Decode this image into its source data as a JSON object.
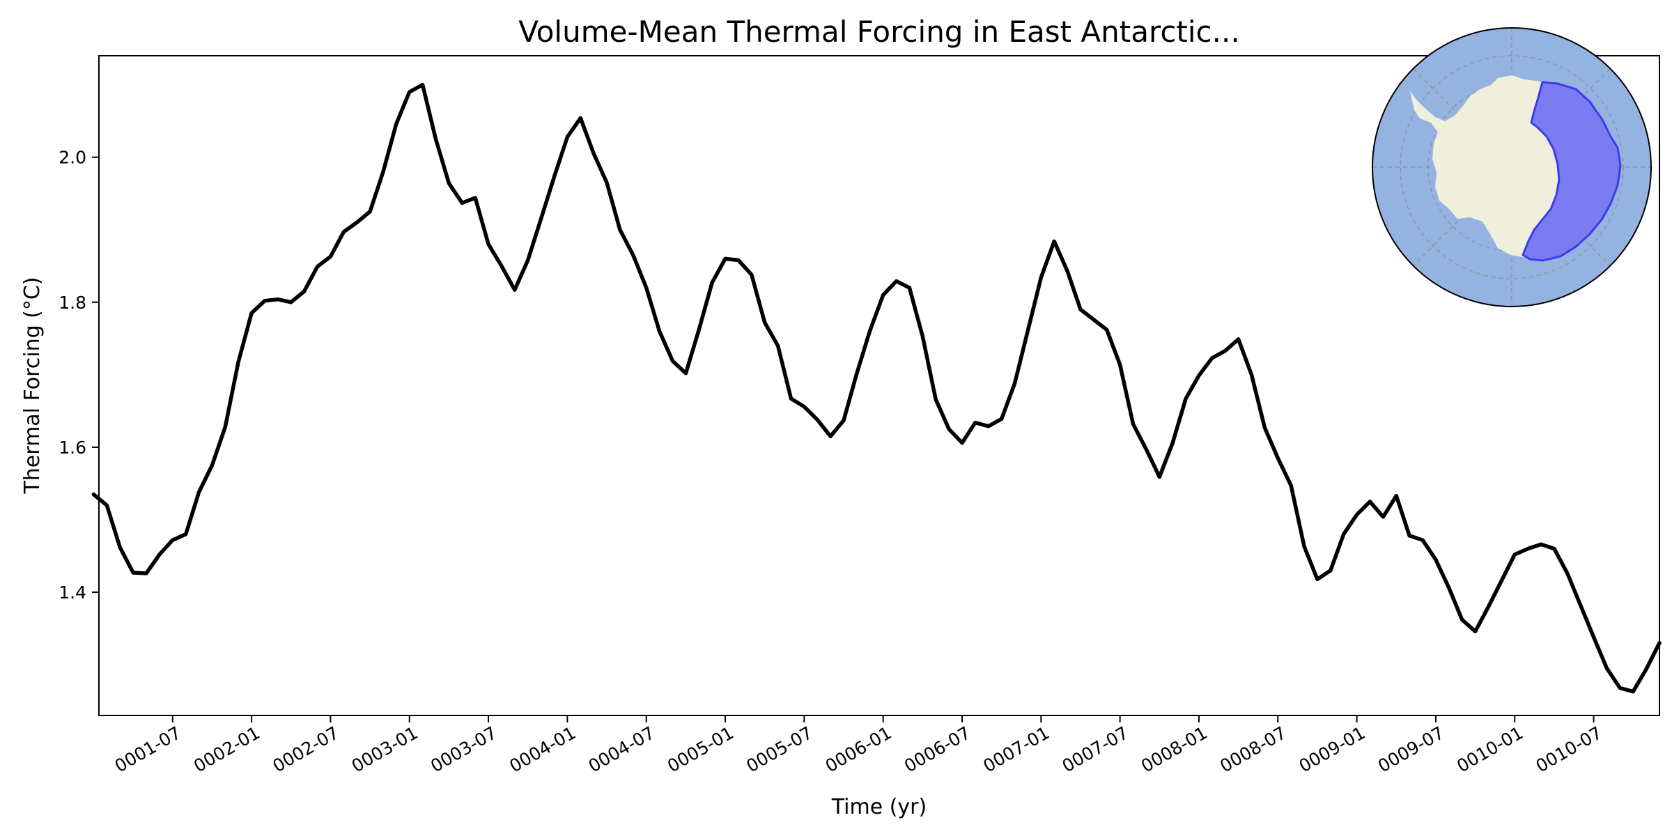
{
  "chart_data": {
    "type": "line",
    "title": "Volume-Mean Thermal Forcing in East Antarctic...",
    "xlabel": "Time (yr)",
    "ylabel": "Thermal Forcing (°C)",
    "xlim": [
      "0001-01-13",
      "0010-12-01"
    ],
    "ylim": [
      1.23,
      2.14
    ],
    "grid": false,
    "x_ticks": [
      "0001-07",
      "0002-01",
      "0002-07",
      "0003-01",
      "0003-07",
      "0004-01",
      "0004-07",
      "0005-01",
      "0005-07",
      "0006-01",
      "0006-07",
      "0007-01",
      "0007-07",
      "0008-01",
      "0008-07",
      "0009-01",
      "0009-07",
      "0010-01",
      "0010-07"
    ],
    "y_ticks": [
      "1.4",
      "1.6",
      "1.8",
      "2.0"
    ],
    "y_tick_values": [
      1.4,
      1.6,
      1.8,
      2.0
    ],
    "series": [
      {
        "color": "#000000",
        "x": [
          "0001-01",
          "0001-02",
          "0001-03",
          "0001-04",
          "0001-05",
          "0001-06",
          "0001-07",
          "0001-08",
          "0001-09",
          "0001-10",
          "0001-11",
          "0001-12",
          "0002-01",
          "0002-02",
          "0002-03",
          "0002-04",
          "0002-05",
          "0002-06",
          "0002-07",
          "0002-08",
          "0002-09",
          "0002-10",
          "0002-11",
          "0002-12",
          "0003-01",
          "0003-02",
          "0003-03",
          "0003-04",
          "0003-05",
          "0003-06",
          "0003-07",
          "0003-08",
          "0003-09",
          "0003-10",
          "0003-11",
          "0003-12",
          "0004-01",
          "0004-02",
          "0004-03",
          "0004-04",
          "0004-05",
          "0004-06",
          "0004-07",
          "0004-08",
          "0004-09",
          "0004-10",
          "0004-11",
          "0004-12",
          "0005-01",
          "0005-02",
          "0005-03",
          "0005-04",
          "0005-05",
          "0005-06",
          "0005-07",
          "0005-08",
          "0005-09",
          "0005-10",
          "0005-11",
          "0005-12",
          "0006-01",
          "0006-02",
          "0006-03",
          "0006-04",
          "0006-05",
          "0006-06",
          "0006-07",
          "0006-08",
          "0006-09",
          "0006-10",
          "0006-11",
          "0006-12",
          "0007-01",
          "0007-02",
          "0007-03",
          "0007-04",
          "0007-05",
          "0007-06",
          "0007-07",
          "0007-08",
          "0007-09",
          "0007-10",
          "0007-11",
          "0007-12",
          "0008-01",
          "0008-02",
          "0008-03",
          "0008-04",
          "0008-05",
          "0008-06",
          "0008-07",
          "0008-08",
          "0008-09",
          "0008-10",
          "0008-11",
          "0008-12",
          "0009-01",
          "0009-02",
          "0009-03",
          "0009-04",
          "0009-05",
          "0009-06",
          "0009-07",
          "0009-08",
          "0009-09",
          "0009-10",
          "0009-11",
          "0009-12",
          "0010-01",
          "0010-02",
          "0010-03",
          "0010-04",
          "0010-05",
          "0010-06",
          "0010-07",
          "0010-08",
          "0010-09",
          "0010-10",
          "0010-11",
          "0010-12"
        ],
        "values": [
          1.535,
          1.52,
          1.462,
          1.427,
          1.426,
          1.452,
          1.472,
          1.48,
          1.538,
          1.575,
          1.628,
          1.718,
          1.785,
          1.802,
          1.804,
          1.8,
          1.815,
          1.849,
          1.863,
          1.897,
          1.91,
          1.925,
          1.98,
          2.046,
          2.09,
          2.1,
          2.025,
          1.964,
          1.937,
          1.944,
          1.88,
          1.85,
          1.817,
          1.858,
          1.915,
          1.973,
          2.028,
          2.054,
          2.005,
          1.965,
          1.9,
          1.865,
          1.82,
          1.76,
          1.719,
          1.702,
          1.762,
          1.827,
          1.86,
          1.858,
          1.838,
          1.772,
          1.74,
          1.667,
          1.656,
          1.638,
          1.615,
          1.637,
          1.702,
          1.761,
          1.81,
          1.829,
          1.82,
          1.753,
          1.666,
          1.625,
          1.606,
          1.634,
          1.629,
          1.639,
          1.688,
          1.761,
          1.834,
          1.884,
          1.843,
          1.79,
          1.776,
          1.762,
          1.714,
          1.632,
          1.597,
          1.559,
          1.606,
          1.667,
          1.699,
          1.723,
          1.733,
          1.749,
          1.7,
          1.627,
          1.585,
          1.547,
          1.463,
          1.418,
          1.43,
          1.48,
          1.507,
          1.525,
          1.504,
          1.533,
          1.478,
          1.472,
          1.445,
          1.406,
          1.362,
          1.346,
          1.38,
          1.416,
          1.452,
          1.46,
          1.466,
          1.46,
          1.426,
          1.382,
          1.338,
          1.295,
          1.268,
          1.263,
          1.294,
          1.33
        ]
      }
    ],
    "inset_map": {
      "type": "south-polar-map",
      "ocean_color": "#95b3e0",
      "land_color": "#efefdb",
      "highlight_color": "#7c7cf2",
      "highlight_edge_color": "#3b3bf0",
      "highlight_region": "East Antarctic sector",
      "gridlines": true
    }
  }
}
